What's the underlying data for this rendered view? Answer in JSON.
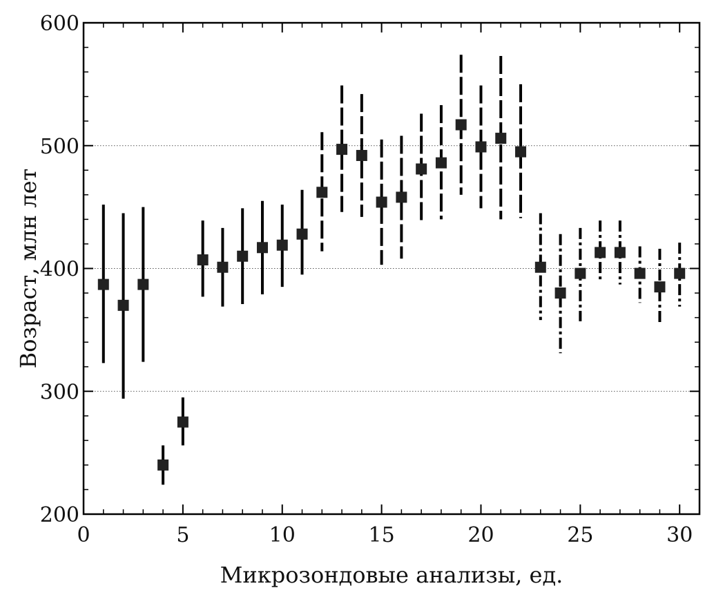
{
  "chart_data": {
    "type": "scatter",
    "title": "",
    "xlabel": "Микрозондовые анализы, ед.",
    "ylabel": "Возраст, млн лет",
    "xlim": [
      0,
      31
    ],
    "ylim": [
      200,
      600
    ],
    "xticks": [
      0,
      5,
      10,
      15,
      20,
      25,
      30
    ],
    "yticks": [
      200,
      300,
      400,
      500,
      600
    ],
    "grid": "horizontal dotted at 300, 400, 500",
    "legend": "none",
    "marker": "square",
    "colors": {
      "marker": "#222222",
      "errorbar": "#000000",
      "grid": "#555555"
    },
    "series": [
      {
        "errorbar_style": "solid",
        "points": [
          {
            "x": 1,
            "y": 387,
            "low": 323,
            "high": 452
          },
          {
            "x": 2,
            "y": 370,
            "low": 294,
            "high": 445
          },
          {
            "x": 3,
            "y": 387,
            "low": 324,
            "high": 450
          },
          {
            "x": 4,
            "y": 240,
            "low": 224,
            "high": 256
          },
          {
            "x": 5,
            "y": 275,
            "low": 256,
            "high": 295
          },
          {
            "x": 6,
            "y": 407,
            "low": 377,
            "high": 439
          },
          {
            "x": 7,
            "y": 401,
            "low": 369,
            "high": 433
          },
          {
            "x": 8,
            "y": 410,
            "low": 371,
            "high": 449
          },
          {
            "x": 9,
            "y": 417,
            "low": 379,
            "high": 455
          },
          {
            "x": 10,
            "y": 419,
            "low": 385,
            "high": 452
          },
          {
            "x": 11,
            "y": 428,
            "low": 395,
            "high": 464
          }
        ]
      },
      {
        "errorbar_style": "dashed",
        "points": [
          {
            "x": 12,
            "y": 462,
            "low": 414,
            "high": 511
          },
          {
            "x": 13,
            "y": 497,
            "low": 446,
            "high": 549
          },
          {
            "x": 14,
            "y": 492,
            "low": 442,
            "high": 542
          },
          {
            "x": 15,
            "y": 454,
            "low": 403,
            "high": 505
          },
          {
            "x": 16,
            "y": 458,
            "low": 408,
            "high": 508
          },
          {
            "x": 17,
            "y": 481,
            "low": 437,
            "high": 526
          },
          {
            "x": 18,
            "y": 486,
            "low": 440,
            "high": 533
          },
          {
            "x": 19,
            "y": 517,
            "low": 460,
            "high": 574
          },
          {
            "x": 20,
            "y": 499,
            "low": 449,
            "high": 549
          },
          {
            "x": 21,
            "y": 506,
            "low": 440,
            "high": 573
          },
          {
            "x": 22,
            "y": 495,
            "low": 441,
            "high": 550
          }
        ]
      },
      {
        "errorbar_style": "dash-dot",
        "points": [
          {
            "x": 23,
            "y": 401,
            "low": 358,
            "high": 445
          },
          {
            "x": 24,
            "y": 380,
            "low": 331,
            "high": 428
          },
          {
            "x": 25,
            "y": 396,
            "low": 357,
            "high": 433
          },
          {
            "x": 26,
            "y": 413,
            "low": 390,
            "high": 439
          },
          {
            "x": 27,
            "y": 413,
            "low": 387,
            "high": 439
          },
          {
            "x": 28,
            "y": 396,
            "low": 372,
            "high": 418
          },
          {
            "x": 29,
            "y": 385,
            "low": 354,
            "high": 416
          },
          {
            "x": 30,
            "y": 396,
            "low": 369,
            "high": 421
          }
        ]
      }
    ]
  }
}
